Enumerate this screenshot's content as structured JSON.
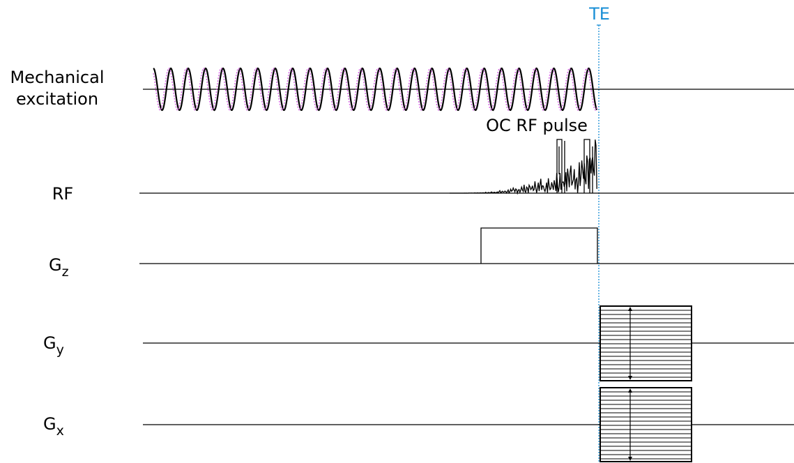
{
  "marker": "TE",
  "rows": [
    {
      "label": [
        "Mechanical",
        "excitation"
      ]
    },
    {
      "label": "RF",
      "annotation": "OC RF pulse"
    },
    {
      "label": {
        "main": "G",
        "sub": "z"
      }
    },
    {
      "label": {
        "main": "G",
        "sub": "y"
      }
    },
    {
      "label": {
        "main": "G",
        "sub": "x"
      }
    }
  ]
}
